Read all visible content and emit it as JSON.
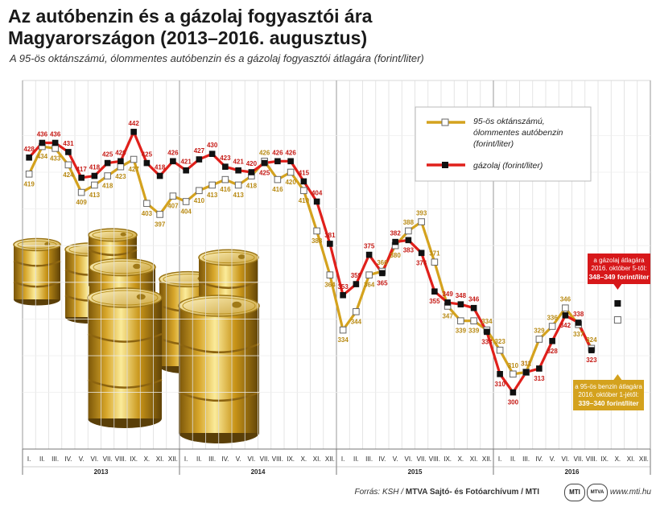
{
  "title": "Az autóbenzin és a gázolaj fogyasztói ára Magyarországon (2013–2016. augusztus)",
  "subtitle": "A 95-ös oktánszámú, ólommentes autóbenzin és a gázolaj fogyasztói átlagára (forint/liter)",
  "chart_data": {
    "type": "line",
    "title": "Az autóbenzin és a gázolaj fogyasztói ára Magyarországon (2013–2016. augusztus)",
    "ylabel": "forint/liter",
    "ylim": [
      270,
      470
    ],
    "month_labels": [
      "I.",
      "II.",
      "III.",
      "IV.",
      "V.",
      "VI.",
      "VII.",
      "VIII.",
      "IX.",
      "X.",
      "XI.",
      "XII."
    ],
    "years": [
      "2013",
      "2014",
      "2015",
      "2016"
    ],
    "series": [
      {
        "name": "95-ös oktánszámú, ólommentes autóbenzin (forint/liter)",
        "color": "#d4a21e",
        "values": [
          419,
          434,
          433,
          424,
          409,
          413,
          418,
          423,
          427,
          403,
          397,
          407,
          404,
          410,
          413,
          416,
          413,
          418,
          426,
          416,
          420,
          410,
          388,
          364,
          334,
          344,
          364,
          366,
          380,
          388,
          393,
          371,
          347,
          339,
          339,
          334,
          323,
          310,
          311,
          329,
          336,
          346,
          337,
          324
        ]
      },
      {
        "name": "gázolaj (forint/liter)",
        "color": "#e0201b",
        "values": [
          428,
          436,
          436,
          431,
          417,
          418,
          425,
          426,
          442,
          425,
          418,
          426,
          421,
          427,
          430,
          423,
          421,
          420,
          425,
          426,
          426,
          415,
          404,
          381,
          353,
          359,
          375,
          365,
          382,
          383,
          376,
          355,
          349,
          348,
          346,
          333,
          310,
          300,
          311,
          313,
          328,
          342,
          338,
          323
        ]
      }
    ],
    "annotations": [
      {
        "text": "a gázolaj átlagára 2016. október 5-től:",
        "value_text": "348–349 forint/liter",
        "value": 348.5
      },
      {
        "text": "a 95-ös benzin átlagára 2016. október 1-jétől:",
        "value_text": "339–340 forint/liter",
        "value": 339.5
      }
    ]
  },
  "footer": {
    "source_prefix": "Forrás: KSH / ",
    "source_bold": "MTVA Sajtó- és Fotóarchívum / MTI",
    "logo1": "MTI",
    "logo2": "MTVA",
    "url": "www.mti.hu"
  }
}
